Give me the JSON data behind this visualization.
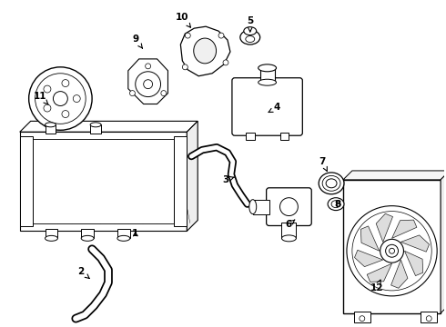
{
  "background_color": "#ffffff",
  "line_color": "#000000",
  "figsize": [
    4.9,
    3.6
  ],
  "dpi": 100,
  "labels": {
    "1": [
      148,
      258,
      148,
      252
    ],
    "2": [
      88,
      300,
      100,
      310
    ],
    "3": [
      248,
      198,
      258,
      195
    ],
    "4": [
      305,
      118,
      292,
      125
    ],
    "5": [
      275,
      22,
      275,
      35
    ],
    "6": [
      318,
      248,
      325,
      242
    ],
    "7": [
      355,
      178,
      362,
      192
    ],
    "8": [
      372,
      225,
      368,
      220
    ],
    "9": [
      148,
      42,
      158,
      55
    ],
    "10": [
      200,
      18,
      210,
      30
    ],
    "11": [
      42,
      105,
      52,
      115
    ],
    "12": [
      415,
      318,
      420,
      308
    ]
  }
}
